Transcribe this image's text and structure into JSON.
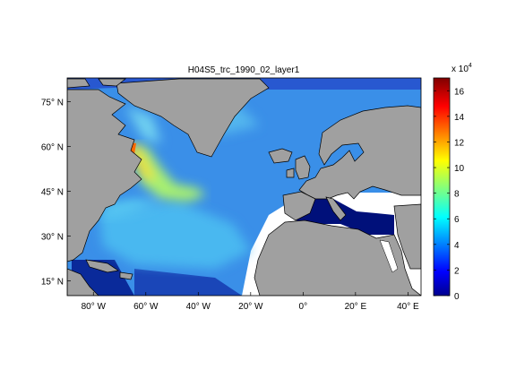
{
  "figure": {
    "title": "H04S5_trc_1990_02_layer1"
  },
  "map": {
    "lon_range": [
      -90,
      45
    ],
    "lat_range": [
      10,
      83
    ],
    "lon_ticks": [
      {
        "value": -80,
        "label": "80° W"
      },
      {
        "value": -60,
        "label": "60° W"
      },
      {
        "value": -40,
        "label": "40° W"
      },
      {
        "value": -20,
        "label": "20° W"
      },
      {
        "value": 0,
        "label": "0°"
      },
      {
        "value": 20,
        "label": "20° E"
      },
      {
        "value": 40,
        "label": "40° E"
      }
    ],
    "lat_ticks": [
      {
        "value": 15,
        "label": "15° N"
      },
      {
        "value": 30,
        "label": "30° N"
      },
      {
        "value": 45,
        "label": "45° N"
      },
      {
        "value": 60,
        "label": "60° N"
      },
      {
        "value": 75,
        "label": "75° N"
      }
    ],
    "land_color": "#a0a0a0",
    "coastline_color": "#000000"
  },
  "colorbar": {
    "colormap": "jet",
    "range": [
      0,
      170000
    ],
    "multiplier_label": "x 10",
    "multiplier_exponent": "4",
    "ticks": [
      "0",
      "2",
      "4",
      "6",
      "8",
      "10",
      "12",
      "14",
      "16"
    ]
  }
}
